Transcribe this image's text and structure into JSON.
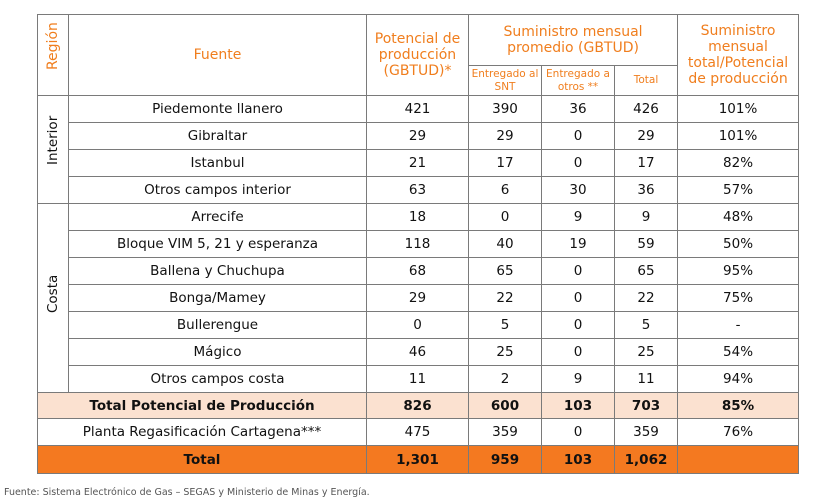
{
  "headers": {
    "region": "Región",
    "source": "Fuente",
    "potential": "Potencial de producción (GBTUD)*",
    "supply": "Suministro mensual promedio (GBTUD)",
    "to_snt": "Entregado al SNT",
    "to_others": "Entregado a otros **",
    "total": "Total",
    "ratio": "Suministro mensual total/Potencial de producción"
  },
  "regions": [
    {
      "name": "Interior",
      "rows": [
        {
          "source": "Piedemonte llanero",
          "potential": "421",
          "snt": "390",
          "others": "36",
          "total": "426",
          "ratio": "101%"
        },
        {
          "source": "Gibraltar",
          "potential": "29",
          "snt": "29",
          "others": "0",
          "total": "29",
          "ratio": "101%"
        },
        {
          "source": "Istanbul",
          "potential": "21",
          "snt": "17",
          "others": "0",
          "total": "17",
          "ratio": "82%"
        },
        {
          "source": "Otros campos interior",
          "potential": "63",
          "snt": "6",
          "others": "30",
          "total": "36",
          "ratio": "57%"
        }
      ]
    },
    {
      "name": "Costa",
      "rows": [
        {
          "source": "Arrecife",
          "potential": "18",
          "snt": "0",
          "others": "9",
          "total": "9",
          "ratio": "48%"
        },
        {
          "source": "Bloque VIM 5, 21 y esperanza",
          "potential": "118",
          "snt": "40",
          "others": "19",
          "total": "59",
          "ratio": "50%"
        },
        {
          "source": "Ballena y Chuchupa",
          "potential": "68",
          "snt": "65",
          "others": "0",
          "total": "65",
          "ratio": "95%"
        },
        {
          "source": "Bonga/Mamey",
          "potential": "29",
          "snt": "22",
          "others": "0",
          "total": "22",
          "ratio": "75%"
        },
        {
          "source": "Bullerengue",
          "potential": "0",
          "snt": "5",
          "others": "0",
          "total": "5",
          "ratio": "-"
        },
        {
          "source": "Mágico",
          "potential": "46",
          "snt": "25",
          "others": "0",
          "total": "25",
          "ratio": "54%"
        },
        {
          "source": "Otros campos costa",
          "potential": "11",
          "snt": "2",
          "others": "9",
          "total": "11",
          "ratio": "94%"
        }
      ]
    }
  ],
  "total_potential": {
    "label": "Total Potencial de Producción",
    "potential": "826",
    "snt": "600",
    "others": "103",
    "total": "703",
    "ratio": "85%"
  },
  "regasification": {
    "label": "Planta Regasificación Cartagena***",
    "potential": "475",
    "snt": "359",
    "others": "0",
    "total": "359",
    "ratio": "76%"
  },
  "grand_total": {
    "label": "Total",
    "potential": "1,301",
    "snt": "959",
    "others": "103",
    "total": "1,062",
    "ratio": ""
  },
  "footer": "Fuente: Sistema Electrónico de Gas – SEGAS y Ministerio de Minas y Energía.",
  "colors": {
    "header_text": "#f07e1e",
    "peach": "#fbe1d0",
    "orange": "#f47920"
  }
}
